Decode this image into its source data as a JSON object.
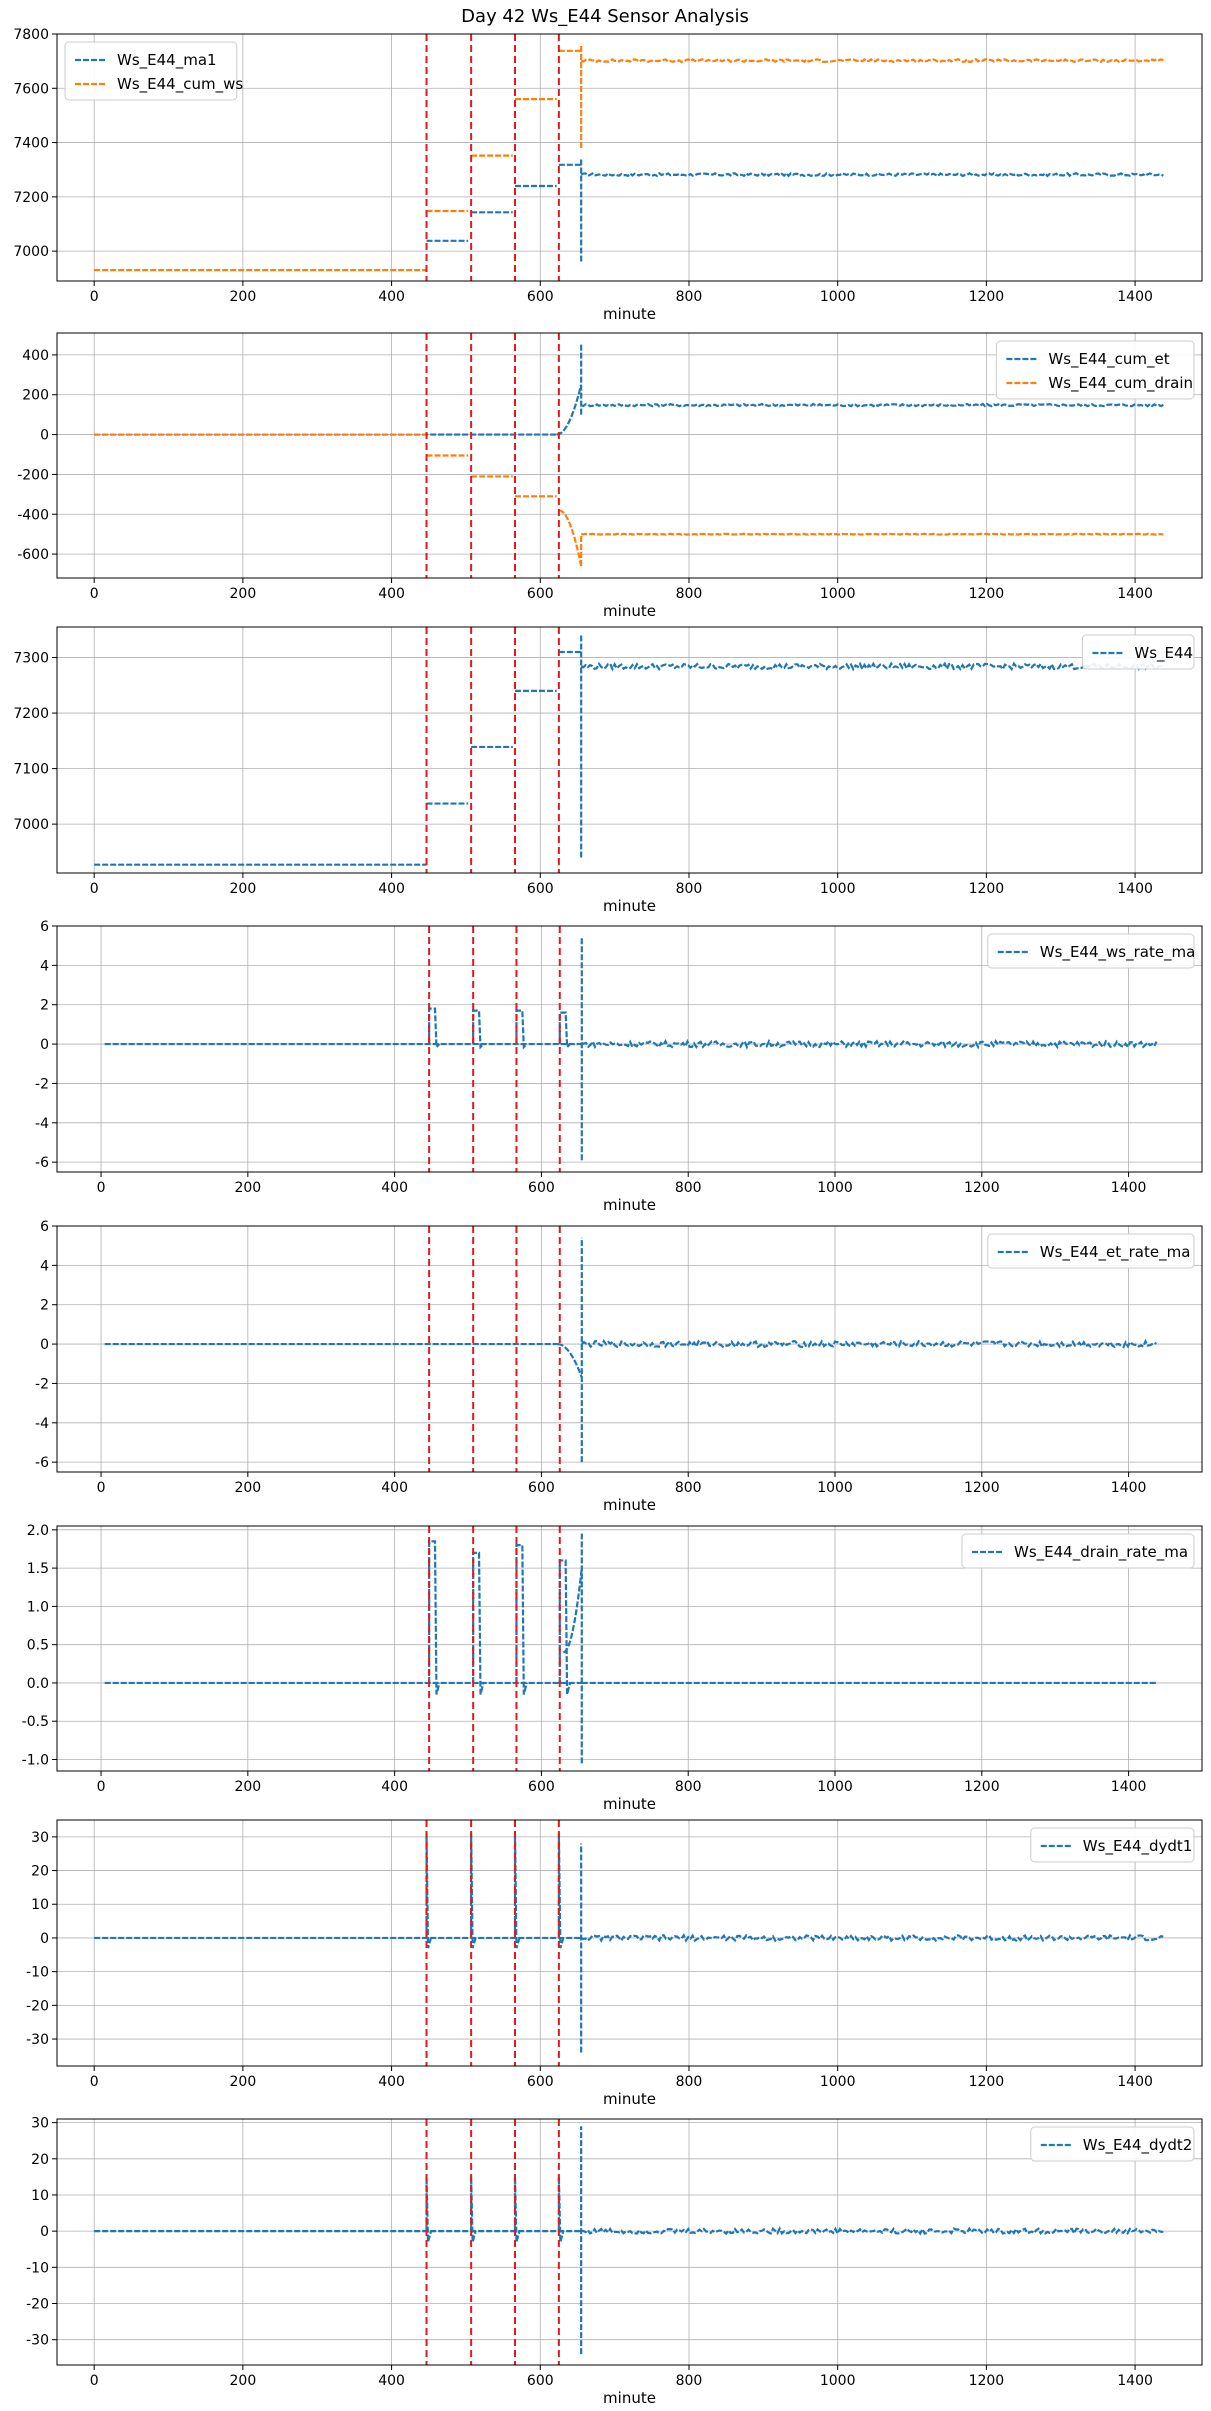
{
  "figure_title": "Day 42 Ws_E44 Sensor Analysis",
  "colors": {
    "blue": "#1f77b4",
    "orange": "#ff7f0e",
    "red": "#e31a1c",
    "grid": "#b0b0b0"
  },
  "chart_data": [
    {
      "type": "line",
      "xlabel": "minute",
      "xlim": [
        -50,
        1490
      ],
      "xticks": [
        0,
        200,
        400,
        600,
        800,
        1000,
        1200,
        1400
      ],
      "ylim": [
        6890,
        7800
      ],
      "yticks": [
        7000,
        7200,
        7400,
        7600,
        7800
      ],
      "ytick_labels": [
        "7000",
        "7200",
        "7400",
        "7600",
        "7800"
      ],
      "legend": "top-left",
      "vlines": [
        447,
        507,
        566,
        625
      ],
      "series": [
        {
          "name": "Ws_E44_ma1",
          "color": "#1f77b4",
          "start_x": 447,
          "end_x": 1440,
          "segments": [
            [
              447,
              503,
              7038
            ],
            [
              507,
              563,
              7143
            ],
            [
              566,
              622,
              7240
            ],
            [
              625,
              655,
              7318
            ]
          ],
          "steady": 7282,
          "noise": 5,
          "glitch": [
            655,
            6962,
            7345
          ]
        },
        {
          "name": "Ws_E44_cum_ws",
          "color": "#ff7f0e",
          "start_x": 0,
          "end_x": 1440,
          "segments": [
            [
              0,
              447,
              6930
            ],
            [
              447,
              503,
              7148
            ],
            [
              507,
              563,
              7352
            ],
            [
              566,
              622,
              7560
            ],
            [
              625,
              655,
              7738
            ]
          ],
          "steady": 7702,
          "noise": 5,
          "glitch": [
            655,
            7380,
            7760
          ]
        }
      ]
    },
    {
      "type": "line",
      "xlabel": "minute",
      "xlim": [
        -50,
        1490
      ],
      "xticks": [
        0,
        200,
        400,
        600,
        800,
        1000,
        1200,
        1400
      ],
      "ylim": [
        -720,
        510
      ],
      "yticks": [
        -600,
        -400,
        -200,
        0,
        200,
        400
      ],
      "ytick_labels": [
        "-600",
        "-400",
        "-200",
        "0",
        "200",
        "400"
      ],
      "legend": "top-right",
      "vlines": [
        447,
        507,
        566,
        625
      ],
      "series": [
        {
          "name": "Ws_E44_cum_et",
          "color": "#1f77b4",
          "start_x": 0,
          "end_x": 1440,
          "segments": [
            [
              0,
              622,
              0
            ]
          ],
          "ramp": [
            622,
            655,
            0,
            250
          ],
          "steady": 148,
          "noise": 6,
          "glitch": [
            655,
            100,
            460
          ]
        },
        {
          "name": "Ws_E44_cum_drain",
          "color": "#ff7f0e",
          "start_x": 0,
          "end_x": 1440,
          "segments": [
            [
              0,
              447,
              0
            ],
            [
              447,
              503,
              -105
            ],
            [
              507,
              563,
              -210
            ],
            [
              566,
              622,
              -310
            ]
          ],
          "ramp": [
            625,
            655,
            -380,
            -660
          ],
          "steady": -500,
          "noise": 2,
          "glitch": [
            655,
            -660,
            -500
          ]
        }
      ]
    },
    {
      "type": "line",
      "xlabel": "minute",
      "xlim": [
        -50,
        1490
      ],
      "xticks": [
        0,
        200,
        400,
        600,
        800,
        1000,
        1200,
        1400
      ],
      "ylim": [
        6912,
        7355
      ],
      "yticks": [
        7000,
        7100,
        7200,
        7300
      ],
      "ytick_labels": [
        "7000",
        "7100",
        "7200",
        "7300"
      ],
      "legend": "top-right",
      "vlines": [
        447,
        507,
        566,
        625
      ],
      "series": [
        {
          "name": "Ws_E44",
          "color": "#1f77b4",
          "start_x": 0,
          "end_x": 1440,
          "segments": [
            [
              0,
              447,
              6927
            ],
            [
              447,
              503,
              7037
            ],
            [
              507,
              563,
              7139
            ],
            [
              566,
              622,
              7240
            ],
            [
              625,
              655,
              7310
            ]
          ],
          "steady": 7284,
          "noise": 5,
          "glitch": [
            655,
            6940,
            7340
          ]
        }
      ]
    },
    {
      "type": "line",
      "xlabel": "minute",
      "xlim": [
        -60,
        1500
      ],
      "xticks": [
        0,
        200,
        400,
        600,
        800,
        1000,
        1200,
        1400
      ],
      "ylim": [
        -6.5,
        6
      ],
      "yticks": [
        -6,
        -4,
        -2,
        0,
        2,
        4,
        6
      ],
      "ytick_labels": [
        "-6",
        "-4",
        "-2",
        "0",
        "2",
        "4",
        "6"
      ],
      "legend": "top-right",
      "vlines": [
        447,
        507,
        566,
        625
      ],
      "series": [
        {
          "name": "Ws_E44_ws_rate_ma",
          "color": "#1f77b4",
          "start_x": 5,
          "end_x": 1440,
          "segments": [
            [
              5,
              655,
              0
            ]
          ],
          "bumps": [
            [
              447,
              455,
              1.8
            ],
            [
              507,
              515,
              1.7
            ],
            [
              566,
              574,
              1.7
            ],
            [
              625,
              633,
              1.6
            ]
          ],
          "steady": 0,
          "noise": 0.15,
          "glitch": [
            655,
            -5.9,
            5.4
          ]
        }
      ]
    },
    {
      "type": "line",
      "xlabel": "minute",
      "xlim": [
        -60,
        1500
      ],
      "xticks": [
        0,
        200,
        400,
        600,
        800,
        1000,
        1200,
        1400
      ],
      "ylim": [
        -6.5,
        6
      ],
      "yticks": [
        -6,
        -4,
        -2,
        0,
        2,
        4,
        6
      ],
      "ytick_labels": [
        "-6",
        "-4",
        "-2",
        "0",
        "2",
        "4",
        "6"
      ],
      "legend": "top-right",
      "vlines": [
        447,
        507,
        566,
        625
      ],
      "series": [
        {
          "name": "Ws_E44_et_rate_ma",
          "color": "#1f77b4",
          "start_x": 5,
          "end_x": 1440,
          "segments": [
            [
              5,
              622,
              0
            ]
          ],
          "ramp": [
            622,
            655,
            0,
            -1.7
          ],
          "steady": 0,
          "noise": 0.15,
          "glitch": [
            655,
            -6.0,
            5.4
          ]
        }
      ]
    },
    {
      "type": "line",
      "xlabel": "minute",
      "xlim": [
        -60,
        1500
      ],
      "xticks": [
        0,
        200,
        400,
        600,
        800,
        1000,
        1200,
        1400
      ],
      "ylim": [
        -1.15,
        2.05
      ],
      "yticks": [
        -1.0,
        -0.5,
        0.0,
        0.5,
        1.0,
        1.5,
        2.0
      ],
      "ytick_labels": [
        "-1.0",
        "-0.5",
        "0.0",
        "0.5",
        "1.0",
        "1.5",
        "2.0"
      ],
      "legend": "top-right",
      "vlines": [
        447,
        507,
        566,
        625
      ],
      "series": [
        {
          "name": "Ws_E44_drain_rate_ma",
          "color": "#1f77b4",
          "start_x": 5,
          "end_x": 1440,
          "segments": [
            [
              5,
              655,
              0
            ]
          ],
          "bumps": [
            [
              447,
              455,
              1.85
            ],
            [
              507,
              515,
              1.7
            ],
            [
              566,
              574,
              1.8
            ],
            [
              625,
              633,
              1.6
            ]
          ],
          "ramp": [
            630,
            655,
            0.4,
            1.5
          ],
          "steady": 0,
          "noise": 0,
          "glitch": [
            655,
            -1.05,
            1.95
          ]
        }
      ]
    },
    {
      "type": "line",
      "xlabel": "minute",
      "xlim": [
        -50,
        1490
      ],
      "xticks": [
        0,
        200,
        400,
        600,
        800,
        1000,
        1200,
        1400
      ],
      "ylim": [
        -38,
        35
      ],
      "yticks": [
        -30,
        -20,
        -10,
        0,
        10,
        20,
        30
      ],
      "ytick_labels": [
        "-30",
        "-20",
        "-10",
        "0",
        "10",
        "20",
        "30"
      ],
      "legend": "top-right",
      "vlines": [
        447,
        507,
        566,
        625
      ],
      "series": [
        {
          "name": "Ws_E44_dydt1",
          "color": "#1f77b4",
          "start_x": 0,
          "end_x": 1440,
          "segments": [
            [
              0,
              655,
              0
            ]
          ],
          "spikes": [
            [
              447,
              31
            ],
            [
              507,
              31
            ],
            [
              566,
              31
            ],
            [
              625,
              31
            ]
          ],
          "steady": 0,
          "noise": 0.8,
          "glitch": [
            655,
            -34,
            28
          ]
        }
      ]
    },
    {
      "type": "line",
      "xlabel": "minute",
      "xlim": [
        -50,
        1490
      ],
      "xticks": [
        0,
        200,
        400,
        600,
        800,
        1000,
        1200,
        1400
      ],
      "ylim": [
        -37,
        31
      ],
      "yticks": [
        -30,
        -20,
        -10,
        0,
        10,
        20,
        30
      ],
      "ytick_labels": [
        "-30",
        "-20",
        "-10",
        "0",
        "10",
        "20",
        "30"
      ],
      "legend": "top-right",
      "vlines": [
        447,
        507,
        566,
        625
      ],
      "series": [
        {
          "name": "Ws_E44_dydt2",
          "color": "#1f77b4",
          "start_x": 0,
          "end_x": 1440,
          "segments": [
            [
              0,
              655,
              0
            ]
          ],
          "spikes": [
            [
              447,
              15
            ],
            [
              507,
              15
            ],
            [
              566,
              15
            ],
            [
              625,
              15
            ]
          ],
          "steady": 0,
          "noise": 0.7,
          "glitch": [
            655,
            -34,
            29
          ]
        }
      ]
    }
  ]
}
